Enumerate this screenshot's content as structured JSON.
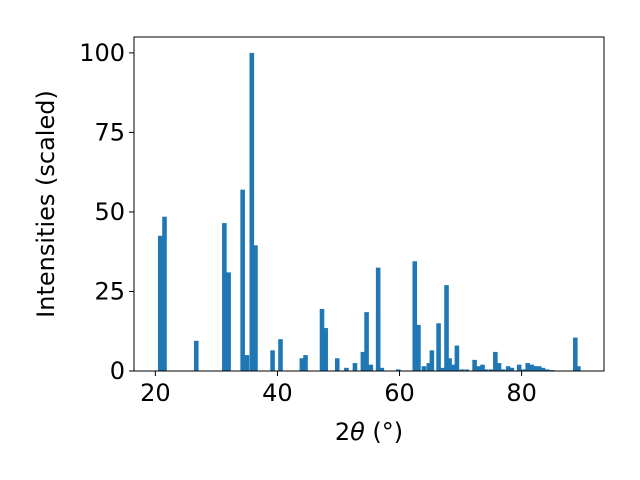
{
  "chart_data": {
    "type": "bar",
    "title": "",
    "xlabel_prefix": "2",
    "xlabel_symbol": "θ",
    "xlabel_suffix": " (°)",
    "ylabel": "Intensities (scaled)",
    "xlim": [
      16.5,
      93.5
    ],
    "ylim": [
      0,
      105
    ],
    "xticks": [
      20,
      40,
      60,
      80
    ],
    "yticks": [
      0,
      25,
      50,
      75,
      100
    ],
    "bar_width": 0.75,
    "bar_color": "#1f77b4",
    "grid": false,
    "legend": "none",
    "x": [
      20.8,
      21.5,
      26.7,
      31.3,
      32.0,
      34.3,
      35.0,
      35.8,
      36.4,
      39.2,
      40.5,
      44.0,
      44.6,
      47.3,
      47.9,
      49.8,
      51.3,
      52.7,
      54.0,
      54.6,
      55.3,
      56.5,
      57.1,
      59.8,
      62.5,
      63.1,
      64.0,
      64.8,
      65.3,
      66.4,
      67.0,
      67.7,
      68.2,
      68.8,
      69.4,
      70.2,
      71.0,
      72.3,
      72.9,
      73.6,
      74.2,
      75.0,
      75.7,
      76.3,
      77.0,
      77.8,
      78.4,
      79.6,
      80.3,
      81.0,
      81.7,
      82.3,
      82.9,
      83.5,
      84.2,
      85.0,
      88.8,
      89.3
    ],
    "values": [
      42.5,
      48.5,
      9.5,
      46.5,
      31.0,
      57.0,
      5.0,
      100,
      39.5,
      6.5,
      10.0,
      4.0,
      5.0,
      19.5,
      13.5,
      4.0,
      1.0,
      2.5,
      6.0,
      18.5,
      2.0,
      32.5,
      1.0,
      0.5,
      34.5,
      14.5,
      1.5,
      2.5,
      6.5,
      15.0,
      1.0,
      27.0,
      4.0,
      2.0,
      8.0,
      0.5,
      0.5,
      3.5,
      1.5,
      2.0,
      0.5,
      0.5,
      6.0,
      2.5,
      0.5,
      1.5,
      1.0,
      2.0,
      0.5,
      2.5,
      2.0,
      1.5,
      1.5,
      1.0,
      0.5,
      0.3,
      10.5,
      1.5
    ]
  }
}
